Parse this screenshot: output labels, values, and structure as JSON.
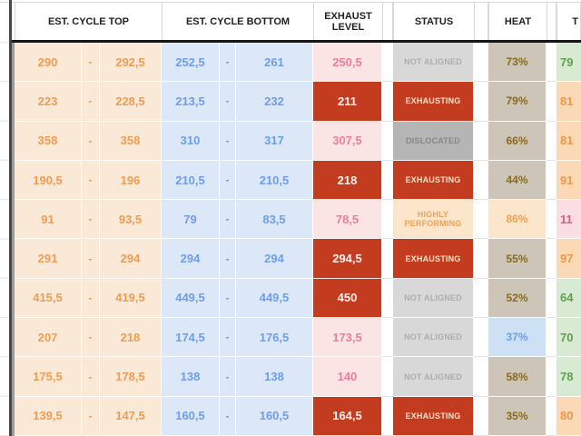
{
  "header": {
    "cycle_top": "EST. CYCLE TOP",
    "cycle_bottom": "EST. CYCLE BOTTOM",
    "exhaust_level": "EXHAUST LEVEL",
    "status": "STATUS",
    "heat": "HEAT",
    "t_partial": "T"
  },
  "dash": "-",
  "palette": {
    "range_top_bg": "#fbe9d7",
    "range_top_text": "#f09c52",
    "range_bottom_bg": "#dce8f8",
    "range_bottom_text": "#6d9eeb",
    "exhaust_light_bg": "#fae5e4",
    "exhaust_light_text": "#ed7e9b",
    "alert_red_bg": "#c43c20",
    "status_not_aligned_bg": "#d8d8d8",
    "status_dislocated_bg": "#b5b5b5",
    "status_highly_performing_bg": "#fbe5cb",
    "heat_normal_bg": "#cdc5b8",
    "heat_normal_text": "#8a6a1c",
    "heat_cold_bg": "#cee1f4",
    "t_green_bg": "#d8ead2",
    "t_orange_bg": "#fbd9b6",
    "t_pink_bg": "#fadee4"
  },
  "rows": [
    {
      "top": {
        "low": "290",
        "high": "292,5"
      },
      "bottom": {
        "low": "252,5",
        "high": "261"
      },
      "exhaust": {
        "value": "250,5",
        "style": "light"
      },
      "status": {
        "label": "NOT ALIGNED",
        "style": "not-aligned"
      },
      "heat": {
        "value": "73%",
        "style": "normal"
      },
      "t": {
        "value": "79",
        "style": "green"
      }
    },
    {
      "top": {
        "low": "223",
        "high": "228,5"
      },
      "bottom": {
        "low": "213,5",
        "high": "232"
      },
      "exhaust": {
        "value": "211",
        "style": "alert"
      },
      "status": {
        "label": "EXHAUSTING",
        "style": "exhausting"
      },
      "heat": {
        "value": "79%",
        "style": "normal"
      },
      "t": {
        "value": "81",
        "style": "orange"
      }
    },
    {
      "top": {
        "low": "358",
        "high": "358"
      },
      "bottom": {
        "low": "310",
        "high": "317"
      },
      "exhaust": {
        "value": "307,5",
        "style": "light"
      },
      "status": {
        "label": "DISLOCATED",
        "style": "dislocated"
      },
      "heat": {
        "value": "66%",
        "style": "normal"
      },
      "t": {
        "value": "81",
        "style": "orange"
      }
    },
    {
      "top": {
        "low": "190,5",
        "high": "196"
      },
      "bottom": {
        "low": "210,5",
        "high": "210,5"
      },
      "exhaust": {
        "value": "218",
        "style": "alert"
      },
      "status": {
        "label": "EXHAUSTING",
        "style": "exhausting"
      },
      "heat": {
        "value": "44%",
        "style": "normal"
      },
      "t": {
        "value": "91",
        "style": "orange"
      }
    },
    {
      "top": {
        "low": "91",
        "high": "93,5"
      },
      "bottom": {
        "low": "79",
        "high": "83,5"
      },
      "exhaust": {
        "value": "78,5",
        "style": "light"
      },
      "status": {
        "label": "HIGHLY PERFORMING",
        "style": "highly-performing"
      },
      "heat": {
        "value": "86%",
        "style": "hot"
      },
      "t": {
        "value": "11",
        "style": "pink"
      }
    },
    {
      "top": {
        "low": "291",
        "high": "294"
      },
      "bottom": {
        "low": "294",
        "high": "294"
      },
      "exhaust": {
        "value": "294,5",
        "style": "alert"
      },
      "status": {
        "label": "EXHAUSTING",
        "style": "exhausting"
      },
      "heat": {
        "value": "55%",
        "style": "normal"
      },
      "t": {
        "value": "97",
        "style": "orange"
      }
    },
    {
      "top": {
        "low": "415,5",
        "high": "419,5"
      },
      "bottom": {
        "low": "449,5",
        "high": "449,5"
      },
      "exhaust": {
        "value": "450",
        "style": "alert"
      },
      "status": {
        "label": "NOT ALIGNED",
        "style": "not-aligned"
      },
      "heat": {
        "value": "52%",
        "style": "normal"
      },
      "t": {
        "value": "64",
        "style": "green"
      }
    },
    {
      "top": {
        "low": "207",
        "high": "218"
      },
      "bottom": {
        "low": "174,5",
        "high": "176,5"
      },
      "exhaust": {
        "value": "173,5",
        "style": "light"
      },
      "status": {
        "label": "NOT ALIGNED",
        "style": "not-aligned"
      },
      "heat": {
        "value": "37%",
        "style": "cold"
      },
      "t": {
        "value": "70",
        "style": "green"
      }
    },
    {
      "top": {
        "low": "175,5",
        "high": "178,5"
      },
      "bottom": {
        "low": "138",
        "high": "138"
      },
      "exhaust": {
        "value": "140",
        "style": "light"
      },
      "status": {
        "label": "NOT ALIGNED",
        "style": "not-aligned"
      },
      "heat": {
        "value": "58%",
        "style": "normal"
      },
      "t": {
        "value": "78",
        "style": "green"
      }
    },
    {
      "top": {
        "low": "139,5",
        "high": "147,5"
      },
      "bottom": {
        "low": "160,5",
        "high": "160,5"
      },
      "exhaust": {
        "value": "164,5",
        "style": "alert"
      },
      "status": {
        "label": "EXHAUSTING",
        "style": "exhausting"
      },
      "heat": {
        "value": "35%",
        "style": "normal"
      },
      "t": {
        "value": "80",
        "style": "orange"
      }
    }
  ]
}
